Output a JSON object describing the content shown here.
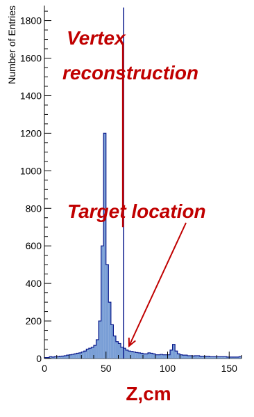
{
  "colors": {
    "accent": "#c00000",
    "histogram_fill": "#7a9fd6",
    "histogram_line": "#0a1a8c",
    "axis": "#000000"
  },
  "chart_data": {
    "type": "bar",
    "title": "",
    "xlabel": "Z,cm",
    "ylabel": "Number of Entries",
    "xlim": [
      0,
      160
    ],
    "ylim": [
      0,
      1880
    ],
    "x_ticks": [
      0,
      50,
      100,
      150
    ],
    "x_tick_labels": [
      "0",
      "50",
      "100",
      "150"
    ],
    "y_ticks": [
      0,
      200,
      400,
      600,
      800,
      1000,
      1200,
      1400,
      1600,
      1800
    ],
    "y_tick_labels": [
      "0",
      "200",
      "400",
      "600",
      "800",
      "1000",
      "1200",
      "1400",
      "1600",
      "1800"
    ],
    "grid": false,
    "legend": "none",
    "series": [
      {
        "bin_width": 2,
        "bin_start": 0,
        "values": [
          5,
          5,
          10,
          8,
          10,
          10,
          12,
          13,
          15,
          18,
          20,
          22,
          25,
          28,
          30,
          35,
          40,
          50,
          55,
          60,
          70,
          100,
          200,
          600,
          1200,
          500,
          300,
          180,
          120,
          90,
          80,
          60,
          55,
          45,
          40,
          38,
          35,
          32,
          30,
          28,
          25,
          25,
          30,
          28,
          25,
          20,
          20,
          22,
          20,
          20,
          20,
          45,
          75,
          40,
          25,
          20,
          18,
          18,
          15,
          15,
          14,
          15,
          15,
          12,
          12,
          12,
          12,
          10,
          10,
          10,
          10,
          10,
          10,
          10,
          8,
          8,
          8,
          8,
          8,
          10
        ]
      }
    ],
    "spikes": [
      {
        "x": 64.3,
        "y": 1870
      }
    ],
    "annotations": [
      {
        "text_lines": [
          "Vertex",
          "reconstruction"
        ],
        "color": "#c00000"
      },
      {
        "text_lines": [
          "Target  location"
        ],
        "color": "#c00000"
      }
    ]
  }
}
